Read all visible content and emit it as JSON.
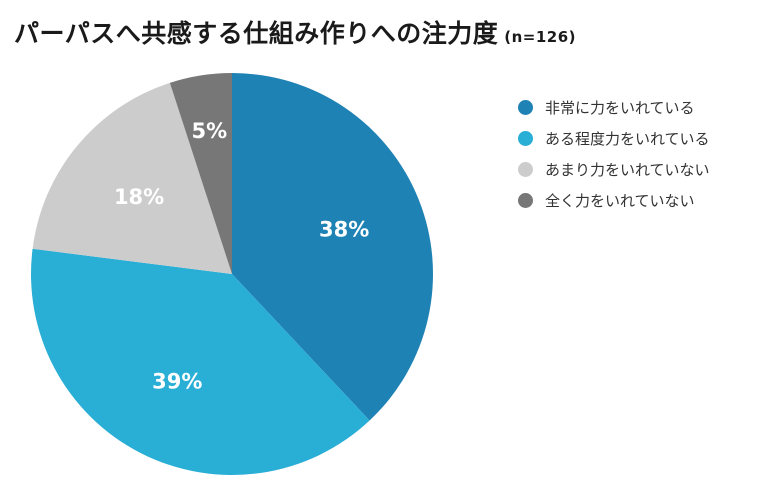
{
  "chart_data": {
    "type": "pie",
    "title": "パーパスへ共感する仕組み作りへの注力度",
    "subtitle": "(n=126)",
    "categories": [
      "非常に力をいれている",
      "ある程度力をいれている",
      "あまり力をいれていない",
      "全く力をいれていない"
    ],
    "values": [
      38,
      39,
      18,
      5
    ],
    "labels": [
      "38%",
      "39%",
      "18%",
      "5%"
    ],
    "colors": [
      "#1f82b4",
      "#29aed6",
      "#cccccc",
      "#777777"
    ],
    "legend_position": "right"
  }
}
